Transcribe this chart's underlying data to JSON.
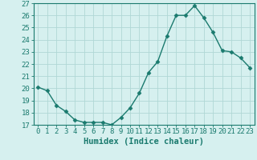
{
  "x": [
    0,
    1,
    2,
    3,
    4,
    5,
    6,
    7,
    8,
    9,
    10,
    11,
    12,
    13,
    14,
    15,
    16,
    17,
    18,
    19,
    20,
    21,
    22,
    23
  ],
  "y": [
    20.1,
    19.8,
    18.6,
    18.1,
    17.4,
    17.2,
    17.2,
    17.2,
    17.0,
    17.6,
    18.4,
    19.6,
    21.3,
    22.2,
    24.3,
    26.0,
    26.0,
    26.8,
    25.8,
    24.6,
    23.1,
    23.0,
    22.5,
    21.7
  ],
  "line_color": "#1a7a6e",
  "marker": "D",
  "marker_size": 2.5,
  "bg_color": "#d6f0ef",
  "grid_color": "#b0d8d5",
  "xlabel": "Humidex (Indice chaleur)",
  "ylabel_ticks": [
    17,
    18,
    19,
    20,
    21,
    22,
    23,
    24,
    25,
    26,
    27
  ],
  "ylim": [
    17,
    27
  ],
  "xlim_min": -0.5,
  "xlim_max": 23.5,
  "label_fontsize": 7.5,
  "tick_fontsize": 6.5
}
